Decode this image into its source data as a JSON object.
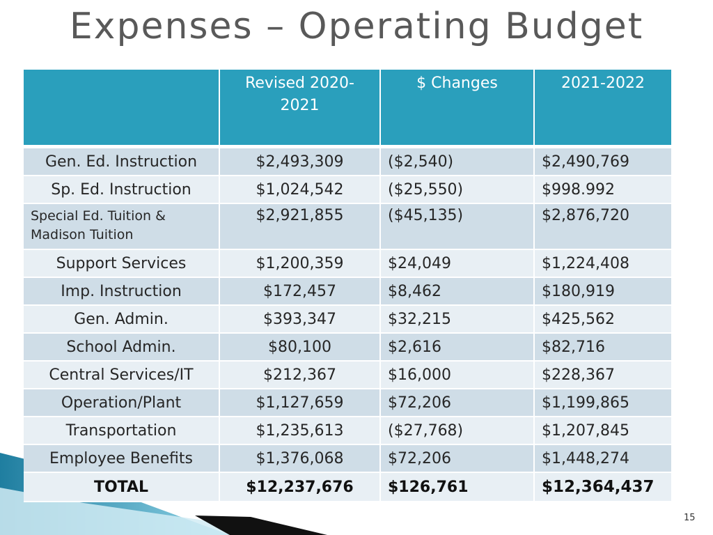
{
  "title": "Expenses – Operating Budget",
  "page_number": "15",
  "colors": {
    "header_bg": "#2a9fbc",
    "row_dark": "#cfdde7",
    "row_light": "#e8eff4",
    "title": "#595959"
  },
  "table": {
    "headers": [
      "",
      "Revised 2020-2021",
      "$ Changes",
      "2021-2022"
    ],
    "rows": [
      {
        "category": "Gen. Ed. Instruction",
        "revised": "$2,493,309",
        "change": "($2,540)",
        "budget": "$2,490,769"
      },
      {
        "category": "Sp. Ed. Instruction",
        "revised": "$1,024,542",
        "change": "($25,550)",
        "budget": "$998.992"
      },
      {
        "category": "Special Ed. Tuition & Madison Tuition",
        "revised": "$2,921,855",
        "change": "($45,135)",
        "budget": "$2,876,720"
      },
      {
        "category": "Support Services",
        "revised": "$1,200,359",
        "change": "$24,049",
        "budget": "$1,224,408"
      },
      {
        "category": "Imp. Instruction",
        "revised": "$172,457",
        "change": "$8,462",
        "budget": "$180,919"
      },
      {
        "category": "Gen. Admin.",
        "revised": "$393,347",
        "change": "$32,215",
        "budget": "$425,562"
      },
      {
        "category": "School Admin.",
        "revised": "$80,100",
        "change": "$2,616",
        "budget": "$82,716"
      },
      {
        "category": "Central Services/IT",
        "revised": "$212,367",
        "change": "$16,000",
        "budget": "$228,367"
      },
      {
        "category": "Operation/Plant",
        "revised": "$1,127,659",
        "change": "$72,206",
        "budget": "$1,199,865"
      },
      {
        "category": "Transportation",
        "revised": "$1,235,613",
        "change": "($27,768)",
        "budget": "$1,207,845"
      },
      {
        "category": "Employee Benefits",
        "revised": "$1,376,068",
        "change": "$72,206",
        "budget": "$1,448,274"
      }
    ],
    "total": {
      "category": "TOTAL",
      "revised": "$12,237,676",
      "change": "$126,761",
      "budget": "$12,364,437"
    }
  }
}
